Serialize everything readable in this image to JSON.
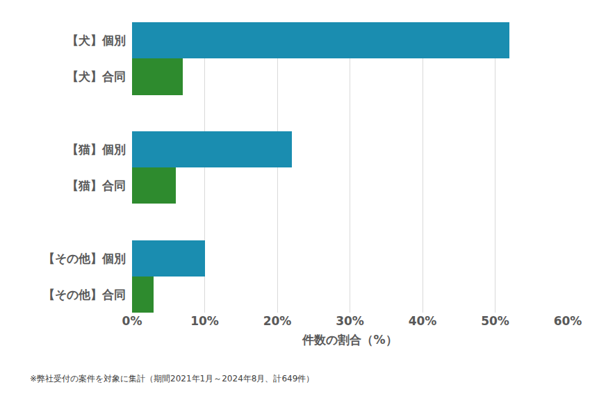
{
  "chart_data": {
    "type": "bar",
    "orientation": "horizontal",
    "categories": [
      "【犬】個別",
      "【犬】合同",
      null,
      "【猫】個別",
      "【猫】合同",
      null,
      "【その他】個別",
      "【その他】合同"
    ],
    "values": [
      52,
      7,
      null,
      22,
      6,
      null,
      10,
      3
    ],
    "colors": [
      "#1a8db0",
      "#2e8b2e",
      null,
      "#1a8db0",
      "#2e8b2e",
      null,
      "#1a8db0",
      "#2e8b2e"
    ],
    "xlabel": "件数の割合（%）",
    "xlim": [
      0,
      60
    ],
    "xticks": [
      {
        "value": 0,
        "label": "0%"
      },
      {
        "value": 10,
        "label": "10%"
      },
      {
        "value": 20,
        "label": "20%"
      },
      {
        "value": 30,
        "label": "30%"
      },
      {
        "value": 40,
        "label": "40%"
      },
      {
        "value": 50,
        "label": "50%"
      },
      {
        "value": 60,
        "label": "60%"
      }
    ],
    "grid": true,
    "annotations": [
      "※弊社受付の案件を対象に集計（期間2021年1月～2024年8月、計649件）"
    ]
  }
}
